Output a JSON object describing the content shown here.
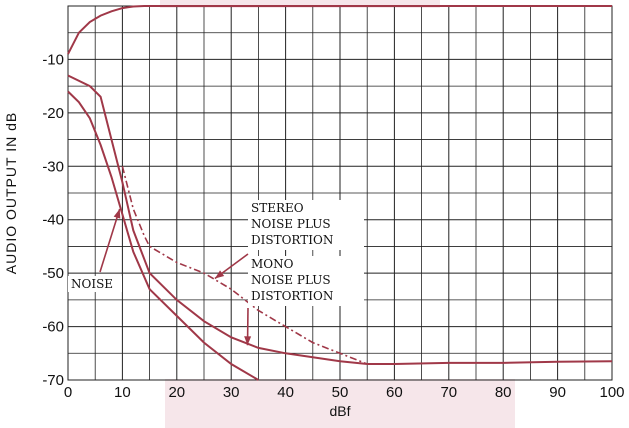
{
  "chart_data": {
    "type": "line",
    "title": "",
    "xlabel": "dBf",
    "ylabel": "AUDIO OUTPUT IN dB",
    "xlim": [
      0,
      100
    ],
    "ylim": [
      -70,
      0
    ],
    "x_ticks": [
      "0",
      "10",
      "20",
      "30",
      "40",
      "50",
      "60",
      "70",
      "80",
      "90",
      "100"
    ],
    "y_ticks": [
      "-10",
      "-20",
      "-30",
      "-40",
      "-50",
      "-60",
      "-70"
    ],
    "grid": true,
    "series": [
      {
        "x": [
          0,
          2,
          4,
          6,
          8,
          10,
          12,
          14,
          20,
          30,
          40,
          50,
          60,
          70,
          80,
          90,
          100
        ],
        "y": [
          -9,
          -5,
          -3,
          -1.8,
          -1,
          -0.4,
          -0.1,
          0,
          0,
          0,
          0,
          0,
          0,
          0,
          0,
          0,
          0
        ],
        "style": "solid"
      },
      {
        "x": [
          0,
          4,
          6,
          8,
          10,
          12,
          15,
          20,
          25,
          30,
          35,
          40,
          50,
          55,
          60,
          70,
          80,
          90,
          100
        ],
        "y": [
          -13,
          -15,
          -17,
          -25,
          -33,
          -42,
          -50,
          -55,
          -59,
          -62,
          -64,
          -65,
          -66.5,
          -67,
          -67,
          -66.8,
          -66.8,
          -66.6,
          -66.5
        ],
        "style": "solid"
      },
      {
        "x": [
          0,
          2,
          4,
          6,
          8,
          10,
          12,
          15,
          20,
          25,
          30,
          35
        ],
        "y": [
          -16,
          -18,
          -21,
          -26,
          -32,
          -39,
          -46,
          -53,
          -58,
          -63,
          -67,
          -70
        ],
        "style": "solid"
      },
      {
        "x": [
          10,
          12,
          14,
          15,
          20,
          25,
          30,
          35,
          40,
          45,
          50,
          55
        ],
        "y": [
          -30,
          -38,
          -43,
          -45,
          -48,
          -50,
          -53,
          -57,
          -60,
          -63,
          -65,
          -67
        ],
        "style": "dash-dot"
      }
    ],
    "annotations": [
      {
        "lines": [
          "STEREO",
          "NOISE PLUS",
          "DISTORTION"
        ],
        "arrow_to": [
          27,
          -51
        ]
      },
      {
        "lines": [
          "MONO",
          "NOISE PLUS",
          "DISTORTION"
        ],
        "arrow_to": [
          33,
          -63.5
        ]
      },
      {
        "lines": [
          "NOISE"
        ],
        "arrow_to": [
          9.5,
          -38
        ]
      }
    ]
  }
}
